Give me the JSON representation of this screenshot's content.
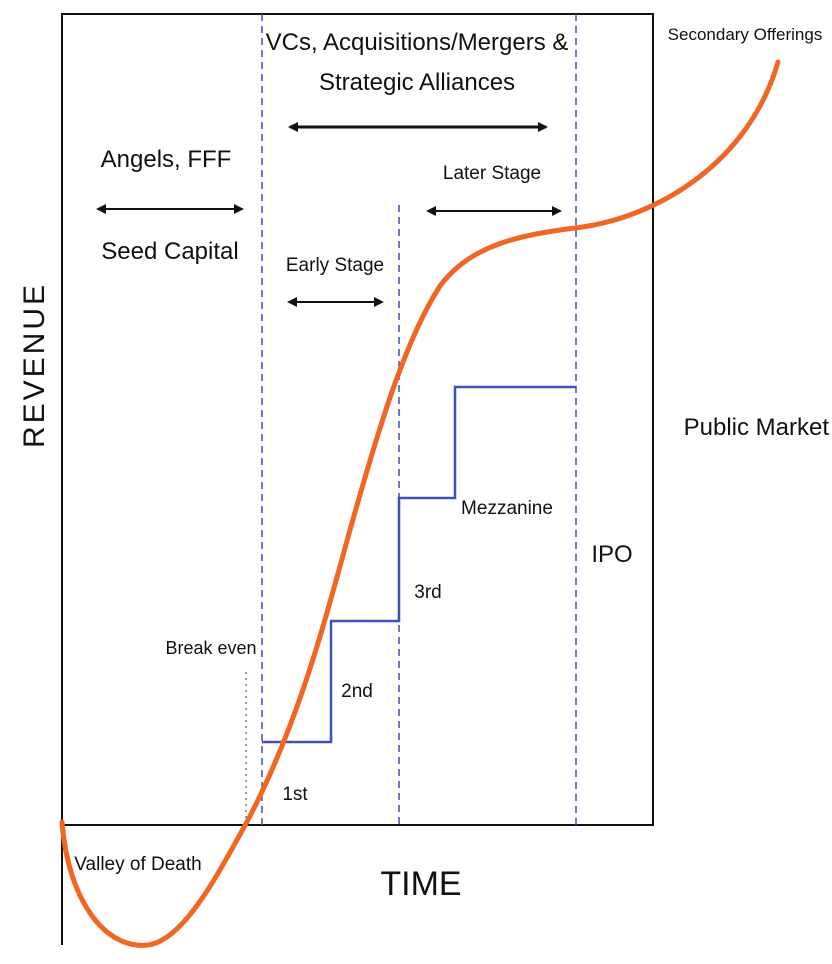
{
  "axes": {
    "y_label": "REVENUE",
    "x_label": "TIME"
  },
  "regions": {
    "angels_title": "Angels, FFF",
    "seed_capital": "Seed Capital",
    "vc_title_line1": "VCs, Acquisitions/Mergers &",
    "vc_title_line2": "Strategic Alliances",
    "early_stage": "Early Stage",
    "later_stage": "Later Stage",
    "public_market": "Public Market"
  },
  "labels": {
    "secondary_offerings": "Secondary Offerings",
    "break_even": "Break even",
    "valley_of_death": "Valley of Death",
    "ipo": "IPO",
    "mezzanine": "Mezzanine"
  },
  "rounds": [
    "1st",
    "2nd",
    "3rd"
  ],
  "colors": {
    "revenue_curve": "#f26522",
    "funding_steps": "#3f51b5",
    "stage_dividers": "#3f51b5",
    "frame": "#111111"
  }
}
